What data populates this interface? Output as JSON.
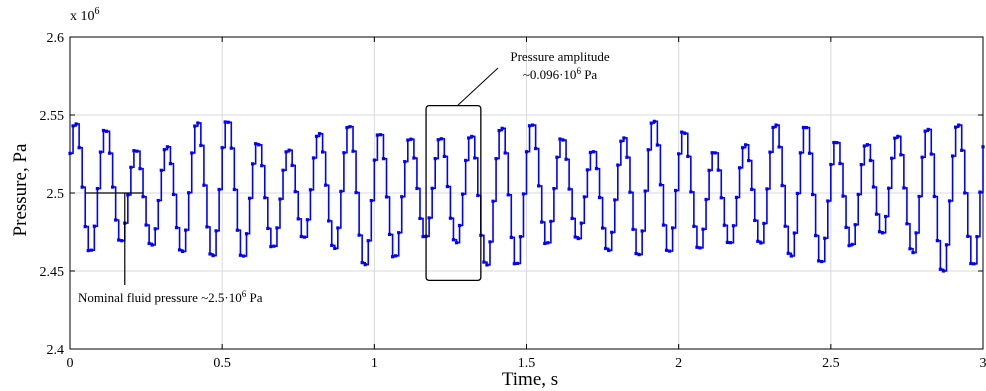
{
  "chart_data": {
    "type": "line",
    "xlabel": "Time, s",
    "ylabel": "Pressure, Pa",
    "y_multiplier_base": "x 10",
    "y_multiplier_exp": "6",
    "xlim": [
      0,
      3
    ],
    "ylim": [
      2.4,
      2.6
    ],
    "xticks": [
      0,
      0.5,
      1,
      1.5,
      2,
      2.5,
      3
    ],
    "xtick_labels": [
      "0",
      "0.5",
      "1",
      "1.5",
      "2",
      "2.5",
      "3"
    ],
    "yticks": [
      2.4,
      2.45,
      2.5,
      2.55,
      2.6
    ],
    "ytick_labels": [
      "2.4",
      "2.45",
      "2.5",
      "2.55",
      "2.6"
    ],
    "grid": true,
    "line_color": "#0000ff",
    "sample_interval_s": 0.01,
    "series": [
      {
        "style": "step",
        "nominal": 2.5,
        "beat_amplitudes": [
          0.045,
          0.03,
          0.046,
          0.03,
          0.045,
          0.032,
          0.047,
          0.03,
          0.044,
          0.03,
          0.045,
          0.03,
          0.048
        ],
        "samples_per_beat_segment": 24
      }
    ],
    "annotations": [
      {
        "id": "amplitude",
        "text_line1": "Pressure amplitude",
        "text_line2_prefix": "~0.096·10",
        "text_line2_exp": "6",
        "text_line2_suffix": " Pa",
        "box_x": [
          1.17,
          1.35
        ],
        "box_y": [
          2.444,
          2.556
        ]
      },
      {
        "id": "nominal",
        "text_prefix": "Nominal fluid pressure ~2.5·10",
        "text_exp": "6",
        "text_suffix": " Pa",
        "point_x": 0.18,
        "point_y": 2.5
      }
    ]
  }
}
